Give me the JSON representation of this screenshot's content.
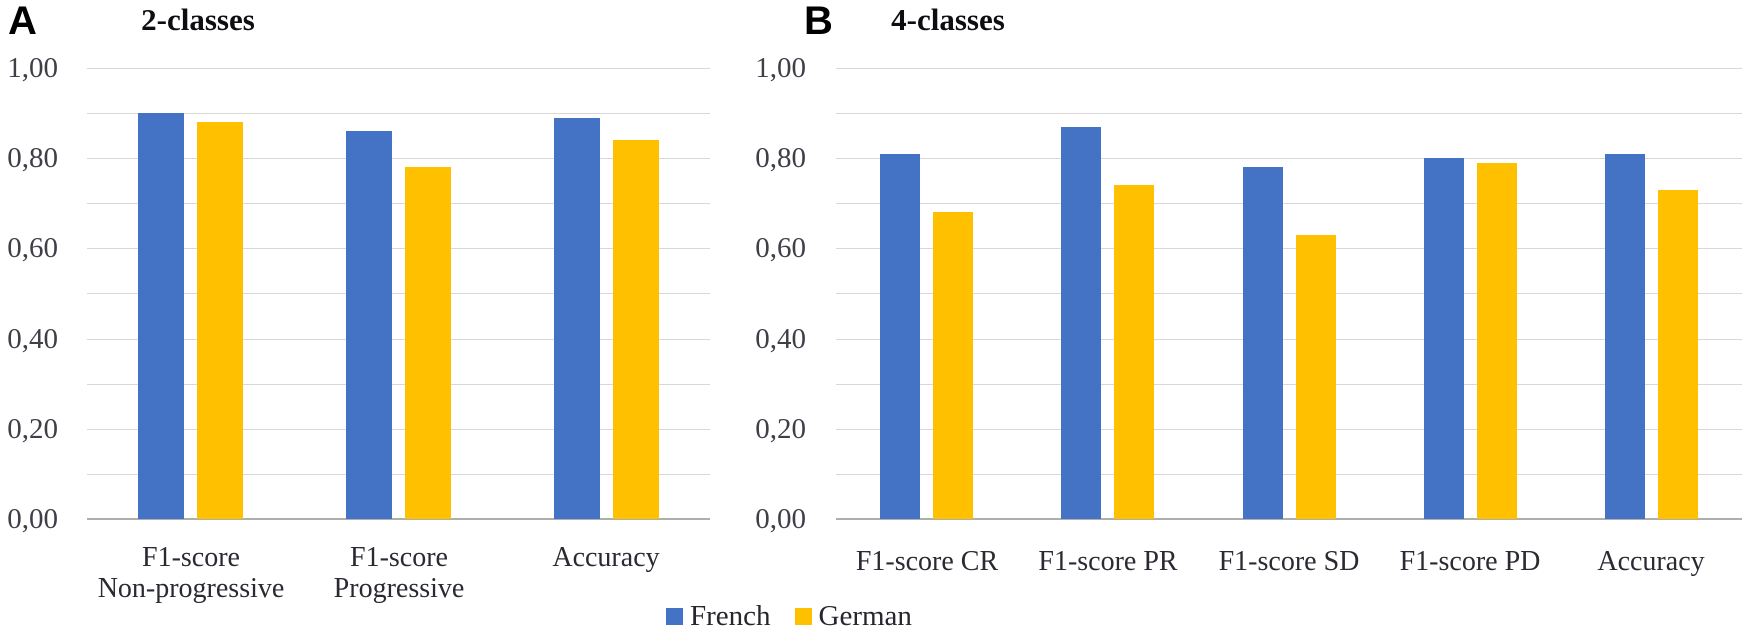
{
  "figure": {
    "legend": {
      "items": [
        {
          "label": "French",
          "color": "#4472C4"
        },
        {
          "label": "German",
          "color": "#FFC000"
        }
      ]
    }
  },
  "chart_data": [
    {
      "type": "bar",
      "panel_letter": "A",
      "title": "2-classes",
      "categories": [
        "F1-score Non-progressive",
        "F1-score Progressive",
        "Accuracy"
      ],
      "category_lines": [
        [
          "F1-score",
          "Non-progressive"
        ],
        [
          "F1-score",
          "Progressive"
        ],
        [
          "Accuracy"
        ]
      ],
      "series": [
        {
          "name": "French",
          "color": "#4472C4",
          "values": [
            0.9,
            0.86,
            0.89
          ]
        },
        {
          "name": "German",
          "color": "#FFC000",
          "values": [
            0.88,
            0.78,
            0.84
          ]
        }
      ],
      "xlabel": "",
      "ylabel": "",
      "ylim": [
        0.0,
        1.0
      ],
      "ytick_labels": [
        "1,00",
        "0,80",
        "0,60",
        "0,40",
        "0,20",
        "0,00"
      ],
      "ytick_values": [
        1.0,
        0.8,
        0.6,
        0.4,
        0.2,
        0.0
      ],
      "gridline_step": 0.1,
      "grid": "on",
      "decimal_separator": ",",
      "legend_position": "bottom-center-shared"
    },
    {
      "type": "bar",
      "panel_letter": "B",
      "title": "4-classes",
      "categories": [
        "F1-score CR",
        "F1-score PR",
        "F1-score SD",
        "F1-score PD",
        "Accuracy"
      ],
      "category_lines": [
        [
          "F1-score CR"
        ],
        [
          "F1-score PR"
        ],
        [
          "F1-score SD"
        ],
        [
          "F1-score PD"
        ],
        [
          "Accuracy"
        ]
      ],
      "series": [
        {
          "name": "French",
          "color": "#4472C4",
          "values": [
            0.81,
            0.87,
            0.78,
            0.8,
            0.81
          ]
        },
        {
          "name": "German",
          "color": "#FFC000",
          "values": [
            0.68,
            0.74,
            0.63,
            0.79,
            0.73
          ]
        }
      ],
      "xlabel": "",
      "ylabel": "",
      "ylim": [
        0.0,
        1.0
      ],
      "ytick_labels": [
        "1,00",
        "0,80",
        "0,60",
        "0,40",
        "0,20",
        "0,00"
      ],
      "ytick_values": [
        1.0,
        0.8,
        0.6,
        0.4,
        0.2,
        0.0
      ],
      "gridline_step": 0.1,
      "grid": "on",
      "decimal_separator": ",",
      "legend_position": "bottom-center-shared"
    }
  ]
}
